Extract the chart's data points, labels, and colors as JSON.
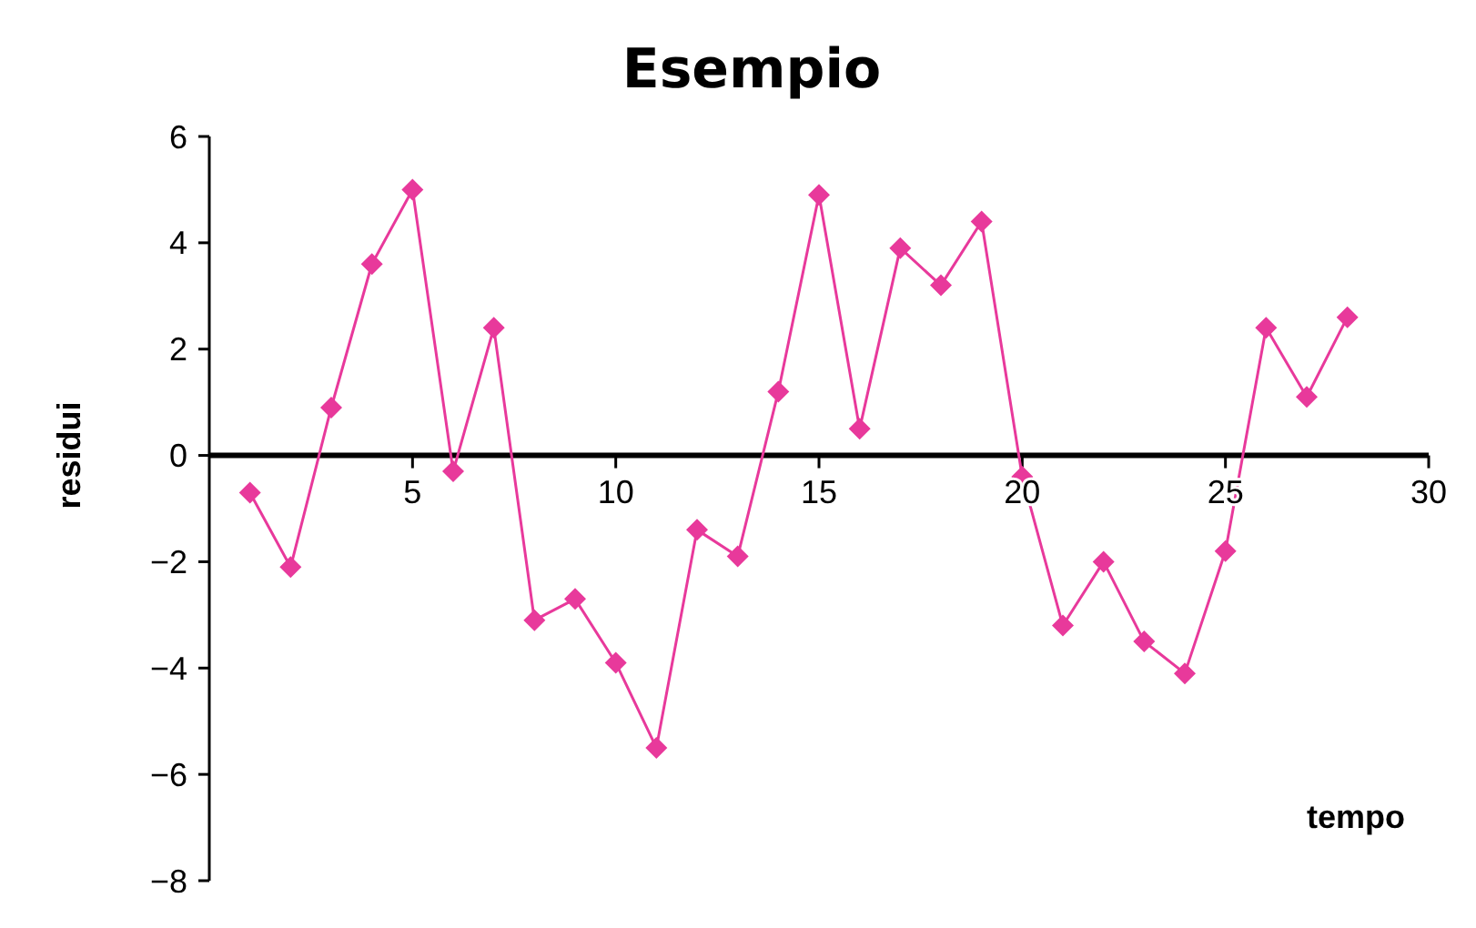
{
  "chart_data": {
    "type": "line",
    "title": "Esempio",
    "xlabel": "tempo",
    "ylabel": "residui",
    "x": [
      1,
      2,
      3,
      4,
      5,
      6,
      7,
      8,
      9,
      10,
      11,
      12,
      13,
      14,
      15,
      16,
      17,
      18,
      19,
      20,
      21,
      22,
      23,
      24,
      25,
      26,
      27,
      28
    ],
    "series": [
      {
        "color": "#e8399b",
        "values": [
          -0.7,
          -2.1,
          0.9,
          3.6,
          5.0,
          -0.3,
          2.4,
          -3.1,
          -2.7,
          -3.9,
          -5.5,
          -1.4,
          -1.9,
          1.2,
          4.9,
          0.5,
          3.9,
          3.2,
          4.4,
          -0.4,
          -3.2,
          -2.0,
          -3.5,
          -4.1,
          -1.8,
          2.4,
          1.1,
          2.6
        ]
      }
    ],
    "xlim": [
      0,
      30
    ],
    "xticks": [
      5,
      10,
      15,
      20,
      25,
      30
    ],
    "ylim": [
      -8,
      6
    ],
    "yticks": [
      -8,
      -6,
      -4,
      -2,
      0,
      2,
      4,
      6
    ],
    "grid": false,
    "marker": "diamond",
    "line_style": "solid"
  }
}
